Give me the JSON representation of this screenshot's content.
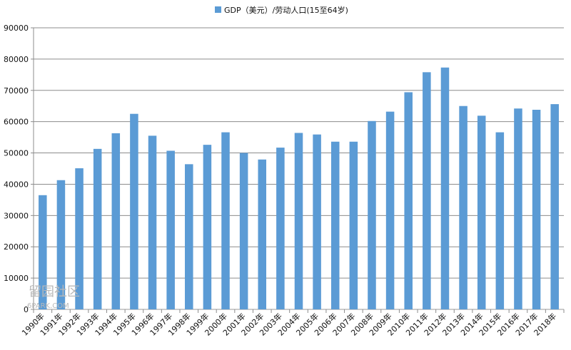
{
  "chart_data": {
    "type": "bar",
    "series": [
      {
        "name": "GDP（美元）/劳动人口(15至64岁)",
        "color": "#5b9bd5",
        "values": [
          36500,
          41300,
          45100,
          51300,
          56300,
          62500,
          55500,
          50700,
          46400,
          52600,
          56600,
          50000,
          47900,
          51700,
          56400,
          55900,
          53600,
          53600,
          60200,
          63200,
          69400,
          75800,
          77300,
          65000,
          61900,
          56600,
          64200,
          63800,
          65600
        ]
      }
    ],
    "categories": [
      "1990年",
      "1991年",
      "1992年",
      "1993年",
      "1994年",
      "1995年",
      "1996年",
      "1997年",
      "1998年",
      "1999年",
      "2000年",
      "2001年",
      "2002年",
      "2003年",
      "2004年",
      "2005年",
      "2006年",
      "2007年",
      "2008年",
      "2009年",
      "2010年",
      "2011年",
      "2012年",
      "2013年",
      "2014年",
      "2015年",
      "2016年",
      "2017年",
      "2018年"
    ],
    "ylim": [
      0,
      90000
    ],
    "y_ticks": [
      "0",
      "10000",
      "20000",
      "30000",
      "40000",
      "50000",
      "60000",
      "70000",
      "80000",
      "90000"
    ],
    "grid": "horizontal",
    "legend_position": "top-center"
  },
  "watermark": {
    "line1": "留园社区",
    "line2": "6PARK.COM"
  }
}
